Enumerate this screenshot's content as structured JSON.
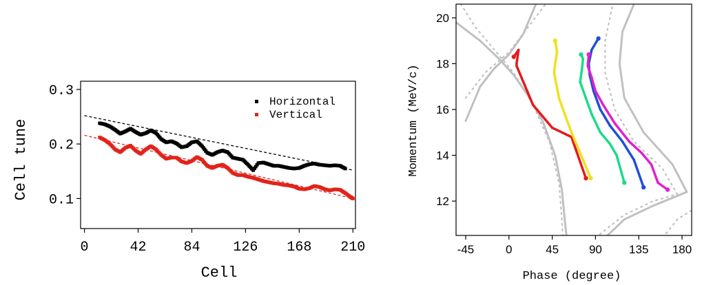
{
  "chart_data": [
    {
      "type": "scatter",
      "xlabel": "Cell",
      "ylabel": "Cell tune",
      "xlim": [
        -3,
        212
      ],
      "ylim": [
        0.045,
        0.315
      ],
      "x_ticks": [
        "0",
        "42",
        "84",
        "126",
        "168",
        "210"
      ],
      "y_ticks": [
        "0.1",
        "0.2",
        "0.3"
      ],
      "legend_position": "top-right",
      "series": [
        {
          "name": "Horizontal",
          "color": "#000000",
          "x": [
            12,
            16,
            20,
            24,
            28,
            32,
            36,
            40,
            44,
            48,
            52,
            56,
            60,
            64,
            68,
            72,
            76,
            80,
            84,
            88,
            92,
            96,
            100,
            104,
            108,
            112,
            116,
            120,
            124,
            128,
            132,
            136,
            140,
            144,
            148,
            152,
            156,
            160,
            164,
            168,
            172,
            176,
            180,
            184,
            188,
            192,
            196,
            200,
            204
          ],
          "y": [
            0.238,
            0.236,
            0.232,
            0.226,
            0.219,
            0.223,
            0.228,
            0.222,
            0.217,
            0.22,
            0.225,
            0.22,
            0.209,
            0.203,
            0.205,
            0.201,
            0.194,
            0.196,
            0.203,
            0.205,
            0.196,
            0.184,
            0.18,
            0.185,
            0.188,
            0.185,
            0.175,
            0.173,
            0.171,
            0.162,
            0.152,
            0.165,
            0.166,
            0.163,
            0.16,
            0.16,
            0.158,
            0.156,
            0.155,
            0.156,
            0.16,
            0.163,
            0.164,
            0.162,
            0.161,
            0.16,
            0.161,
            0.16,
            0.155
          ]
        },
        {
          "name": "Vertical",
          "color": "#e0241b",
          "x": [
            12,
            16,
            20,
            24,
            28,
            32,
            36,
            40,
            44,
            48,
            52,
            56,
            60,
            64,
            68,
            72,
            76,
            80,
            84,
            88,
            92,
            96,
            100,
            104,
            108,
            112,
            116,
            120,
            124,
            128,
            132,
            136,
            140,
            144,
            148,
            152,
            156,
            160,
            164,
            168,
            172,
            176,
            180,
            184,
            188,
            192,
            196,
            200,
            204,
            208,
            210
          ],
          "y": [
            0.212,
            0.207,
            0.2,
            0.19,
            0.185,
            0.193,
            0.197,
            0.188,
            0.182,
            0.19,
            0.196,
            0.19,
            0.18,
            0.173,
            0.175,
            0.175,
            0.168,
            0.165,
            0.169,
            0.176,
            0.171,
            0.16,
            0.156,
            0.16,
            0.162,
            0.156,
            0.147,
            0.143,
            0.143,
            0.14,
            0.138,
            0.135,
            0.132,
            0.13,
            0.128,
            0.127,
            0.125,
            0.124,
            0.122,
            0.118,
            0.117,
            0.119,
            0.123,
            0.121,
            0.117,
            0.115,
            0.117,
            0.116,
            0.11,
            0.103,
            0.1
          ]
        }
      ],
      "fit_lines": [
        {
          "color": "#000000",
          "x": [
            0,
            210
          ],
          "y": [
            0.252,
            0.152
          ]
        },
        {
          "color": "#e0241b",
          "x": [
            0,
            210
          ],
          "y": [
            0.216,
            0.1
          ]
        }
      ]
    },
    {
      "type": "line",
      "xlabel": "Phase (degree)",
      "ylabel": "Momentum (MeV/c)",
      "xlim": [
        -55,
        190
      ],
      "ylim": [
        10.5,
        20.6
      ],
      "x_ticks": [
        "-45",
        "0",
        "45",
        "90",
        "135",
        "180"
      ],
      "y_ticks": [
        "12",
        "14",
        "16",
        "18",
        "20"
      ],
      "series": [
        {
          "color": "#e41a1c",
          "x": [
            5,
            10,
            8,
            8,
            25,
            45,
            65,
            80
          ],
          "y": [
            18.3,
            18.6,
            18.0,
            17.9,
            16.2,
            15.2,
            14.8,
            13.0
          ]
        },
        {
          "color": "#f0e020",
          "x": [
            48,
            50,
            48,
            47,
            52,
            58,
            65,
            75,
            85
          ],
          "y": [
            19.0,
            18.5,
            18.0,
            17.6,
            16.5,
            15.8,
            15.0,
            14.0,
            13.0
          ]
        },
        {
          "color": "#1adb8a",
          "x": [
            75,
            77,
            76,
            74,
            80,
            86,
            95,
            105,
            112,
            120
          ],
          "y": [
            18.4,
            18.2,
            17.8,
            17.2,
            16.5,
            15.8,
            15.0,
            14.5,
            14.0,
            12.8
          ]
        },
        {
          "color": "#1e4fd6",
          "x": [
            93,
            86,
            83,
            84,
            88,
            95,
            105,
            118,
            130,
            140
          ],
          "y": [
            19.1,
            18.6,
            18.0,
            17.5,
            16.8,
            16.0,
            15.3,
            14.6,
            13.8,
            12.6
          ]
        },
        {
          "color": "#e020d0",
          "x": [
            83,
            82,
            86,
            90,
            98,
            110,
            125,
            138,
            148,
            155,
            165
          ],
          "y": [
            18.4,
            17.9,
            17.4,
            16.8,
            16.2,
            15.4,
            14.6,
            14.1,
            13.6,
            12.8,
            12.5
          ]
        }
      ],
      "reference_curves_color": "#c0c0c0"
    }
  ]
}
